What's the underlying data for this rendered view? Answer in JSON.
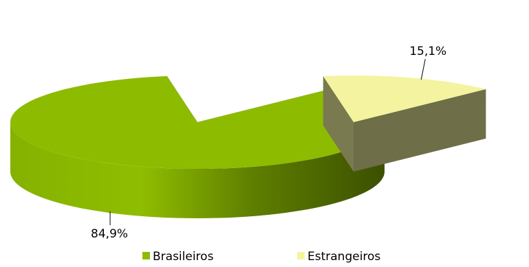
{
  "chart_data": {
    "type": "pie",
    "style": "3d-exploded",
    "title": "",
    "categories": [
      "Brasileiros",
      "Estrangeiros"
    ],
    "values": [
      84.9,
      15.1
    ],
    "labels": [
      "84,9%",
      "15,1%"
    ],
    "colors": {
      "Brasileiros": "#8dbb00",
      "Estrangeiros": "#f4f4a0"
    },
    "legend": {
      "position": "bottom",
      "entries": [
        "Brasileiros",
        "Estrangeiros"
      ]
    }
  }
}
